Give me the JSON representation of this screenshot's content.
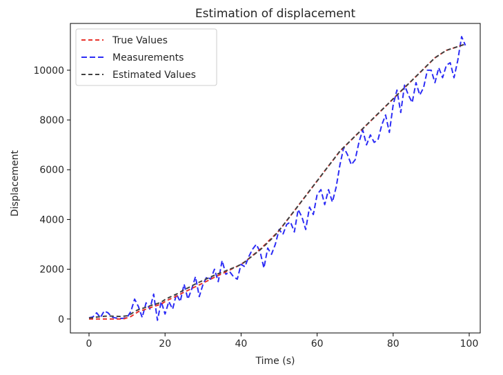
{
  "chart_data": {
    "type": "line",
    "title": "Estimation of displacement",
    "xlabel": "Time (s)",
    "ylabel": "Displacement",
    "xlim": [
      -4.9,
      102.9
    ],
    "ylim": [
      -560,
      11880
    ],
    "xticks": [
      0,
      20,
      40,
      60,
      80,
      100
    ],
    "yticks": [
      0,
      2000,
      4000,
      6000,
      8000,
      10000
    ],
    "xtick_labels": [
      "0",
      "20",
      "40",
      "60",
      "80",
      "100"
    ],
    "ytick_labels": [
      "0",
      "2000",
      "4000",
      "6000",
      "8000",
      "10000"
    ],
    "grid": false,
    "legend_position": "upper left",
    "x": [
      0,
      1,
      2,
      3,
      4,
      5,
      6,
      7,
      8,
      9,
      10,
      11,
      12,
      13,
      14,
      15,
      16,
      17,
      18,
      19,
      20,
      21,
      22,
      23,
      24,
      25,
      26,
      27,
      28,
      29,
      30,
      31,
      32,
      33,
      34,
      35,
      36,
      37,
      38,
      39,
      40,
      41,
      42,
      43,
      44,
      45,
      46,
      47,
      48,
      49,
      50,
      51,
      52,
      53,
      54,
      55,
      56,
      57,
      58,
      59,
      60,
      61,
      62,
      63,
      64,
      65,
      66,
      67,
      68,
      69,
      70,
      71,
      72,
      73,
      74,
      75,
      76,
      77,
      78,
      79,
      80,
      81,
      82,
      83,
      84,
      85,
      86,
      87,
      88,
      89,
      90,
      91,
      92,
      93,
      94,
      95,
      96,
      97,
      98,
      99
    ],
    "series": [
      {
        "name": "True Values",
        "color": "#e8312a",
        "dash": "6,4",
        "values": [
          0,
          0,
          0,
          0,
          0,
          0,
          0,
          0,
          0,
          0,
          50,
          100,
          200,
          300,
          350,
          400,
          450,
          500,
          550,
          600,
          700,
          780,
          850,
          920,
          1000,
          1080,
          1150,
          1230,
          1300,
          1370,
          1450,
          1520,
          1600,
          1680,
          1750,
          1820,
          1900,
          1970,
          2050,
          2120,
          2200,
          2300,
          2420,
          2550,
          2680,
          2800,
          2950,
          3100,
          3250,
          3400,
          3560,
          3750,
          3950,
          4150,
          4350,
          4550,
          4750,
          4950,
          5150,
          5350,
          5550,
          5750,
          5950,
          6150,
          6350,
          6550,
          6750,
          6900,
          7050,
          7200,
          7350,
          7500,
          7650,
          7800,
          7950,
          8100,
          8250,
          8400,
          8550,
          8700,
          8850,
          9000,
          9150,
          9300,
          9450,
          9600,
          9750,
          9900,
          10050,
          10200,
          10350,
          10500,
          10600,
          10700,
          10800,
          10850,
          10900,
          10950,
          11000,
          11050
        ]
      },
      {
        "name": "Measurements",
        "color": "#2b2bf5",
        "dash": "8,4",
        "values": [
          50,
          80,
          250,
          60,
          320,
          250,
          80,
          40,
          20,
          30,
          60,
          300,
          800,
          500,
          60,
          650,
          400,
          1000,
          -50,
          700,
          200,
          700,
          400,
          1000,
          700,
          1400,
          800,
          1200,
          1700,
          900,
          1400,
          1700,
          1600,
          2000,
          1500,
          2350,
          1800,
          1900,
          1700,
          1600,
          2200,
          2100,
          2500,
          2800,
          3000,
          2700,
          2050,
          2850,
          2600,
          3000,
          3600,
          3400,
          3800,
          3900,
          3500,
          4400,
          4100,
          3600,
          4500,
          4200,
          5000,
          5200,
          4600,
          5200,
          4700,
          5300,
          6200,
          6900,
          6600,
          6200,
          6400,
          7100,
          7600,
          7000,
          7400,
          7100,
          7200,
          7800,
          8200,
          7500,
          8600,
          9200,
          8300,
          9400,
          9000,
          8700,
          9500,
          9000,
          9300,
          10000,
          10000,
          9500,
          10100,
          9700,
          10200,
          10300,
          9700,
          10400,
          11350,
          11000
        ]
      },
      {
        "name": "Estimated Values",
        "color": "#404040",
        "dash": "6,4",
        "values": [
          40,
          50,
          80,
          90,
          110,
          120,
          115,
          110,
          105,
          110,
          130,
          200,
          300,
          380,
          420,
          480,
          530,
          580,
          620,
          680,
          780,
          860,
          930,
          1000,
          1080,
          1180,
          1250,
          1330,
          1410,
          1480,
          1550,
          1620,
          1690,
          1760,
          1820,
          1880,
          1940,
          2000,
          2060,
          2120,
          2200,
          2300,
          2420,
          2540,
          2660,
          2780,
          2920,
          3070,
          3220,
          3380,
          3560,
          3750,
          3950,
          4150,
          4350,
          4550,
          4750,
          4950,
          5150,
          5350,
          5550,
          5750,
          5950,
          6150,
          6350,
          6550,
          6750,
          6900,
          7050,
          7200,
          7350,
          7500,
          7650,
          7800,
          7950,
          8100,
          8250,
          8400,
          8550,
          8700,
          8850,
          9000,
          9150,
          9300,
          9450,
          9600,
          9750,
          9900,
          10050,
          10200,
          10350,
          10500,
          10600,
          10700,
          10800,
          10850,
          10900,
          10950,
          11000,
          11050
        ]
      }
    ]
  }
}
